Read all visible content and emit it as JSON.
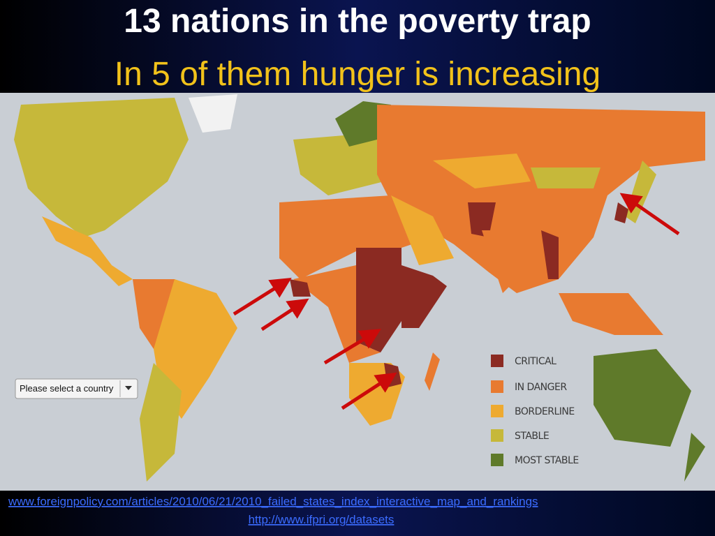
{
  "title": "13 nations in the poverty trap",
  "subtitle": "In 5 of them hunger is increasing",
  "country_select": "Please select a country",
  "legend": [
    {
      "label": "CRITICAL",
      "color": "#8b2a22"
    },
    {
      "label": "IN DANGER",
      "color": "#e87a30"
    },
    {
      "label": "BORDERLINE",
      "color": "#eeaa30"
    },
    {
      "label": "STABLE",
      "color": "#c6b83a"
    },
    {
      "label": "MOST STABLE",
      "color": "#5f7a2a"
    }
  ],
  "links": [
    "www.foreignpolicy.com/articles/2010/06/21/2010_failed_states_index_interactive_map_and_rankings",
    "http://www.ifpri.org/datasets"
  ]
}
